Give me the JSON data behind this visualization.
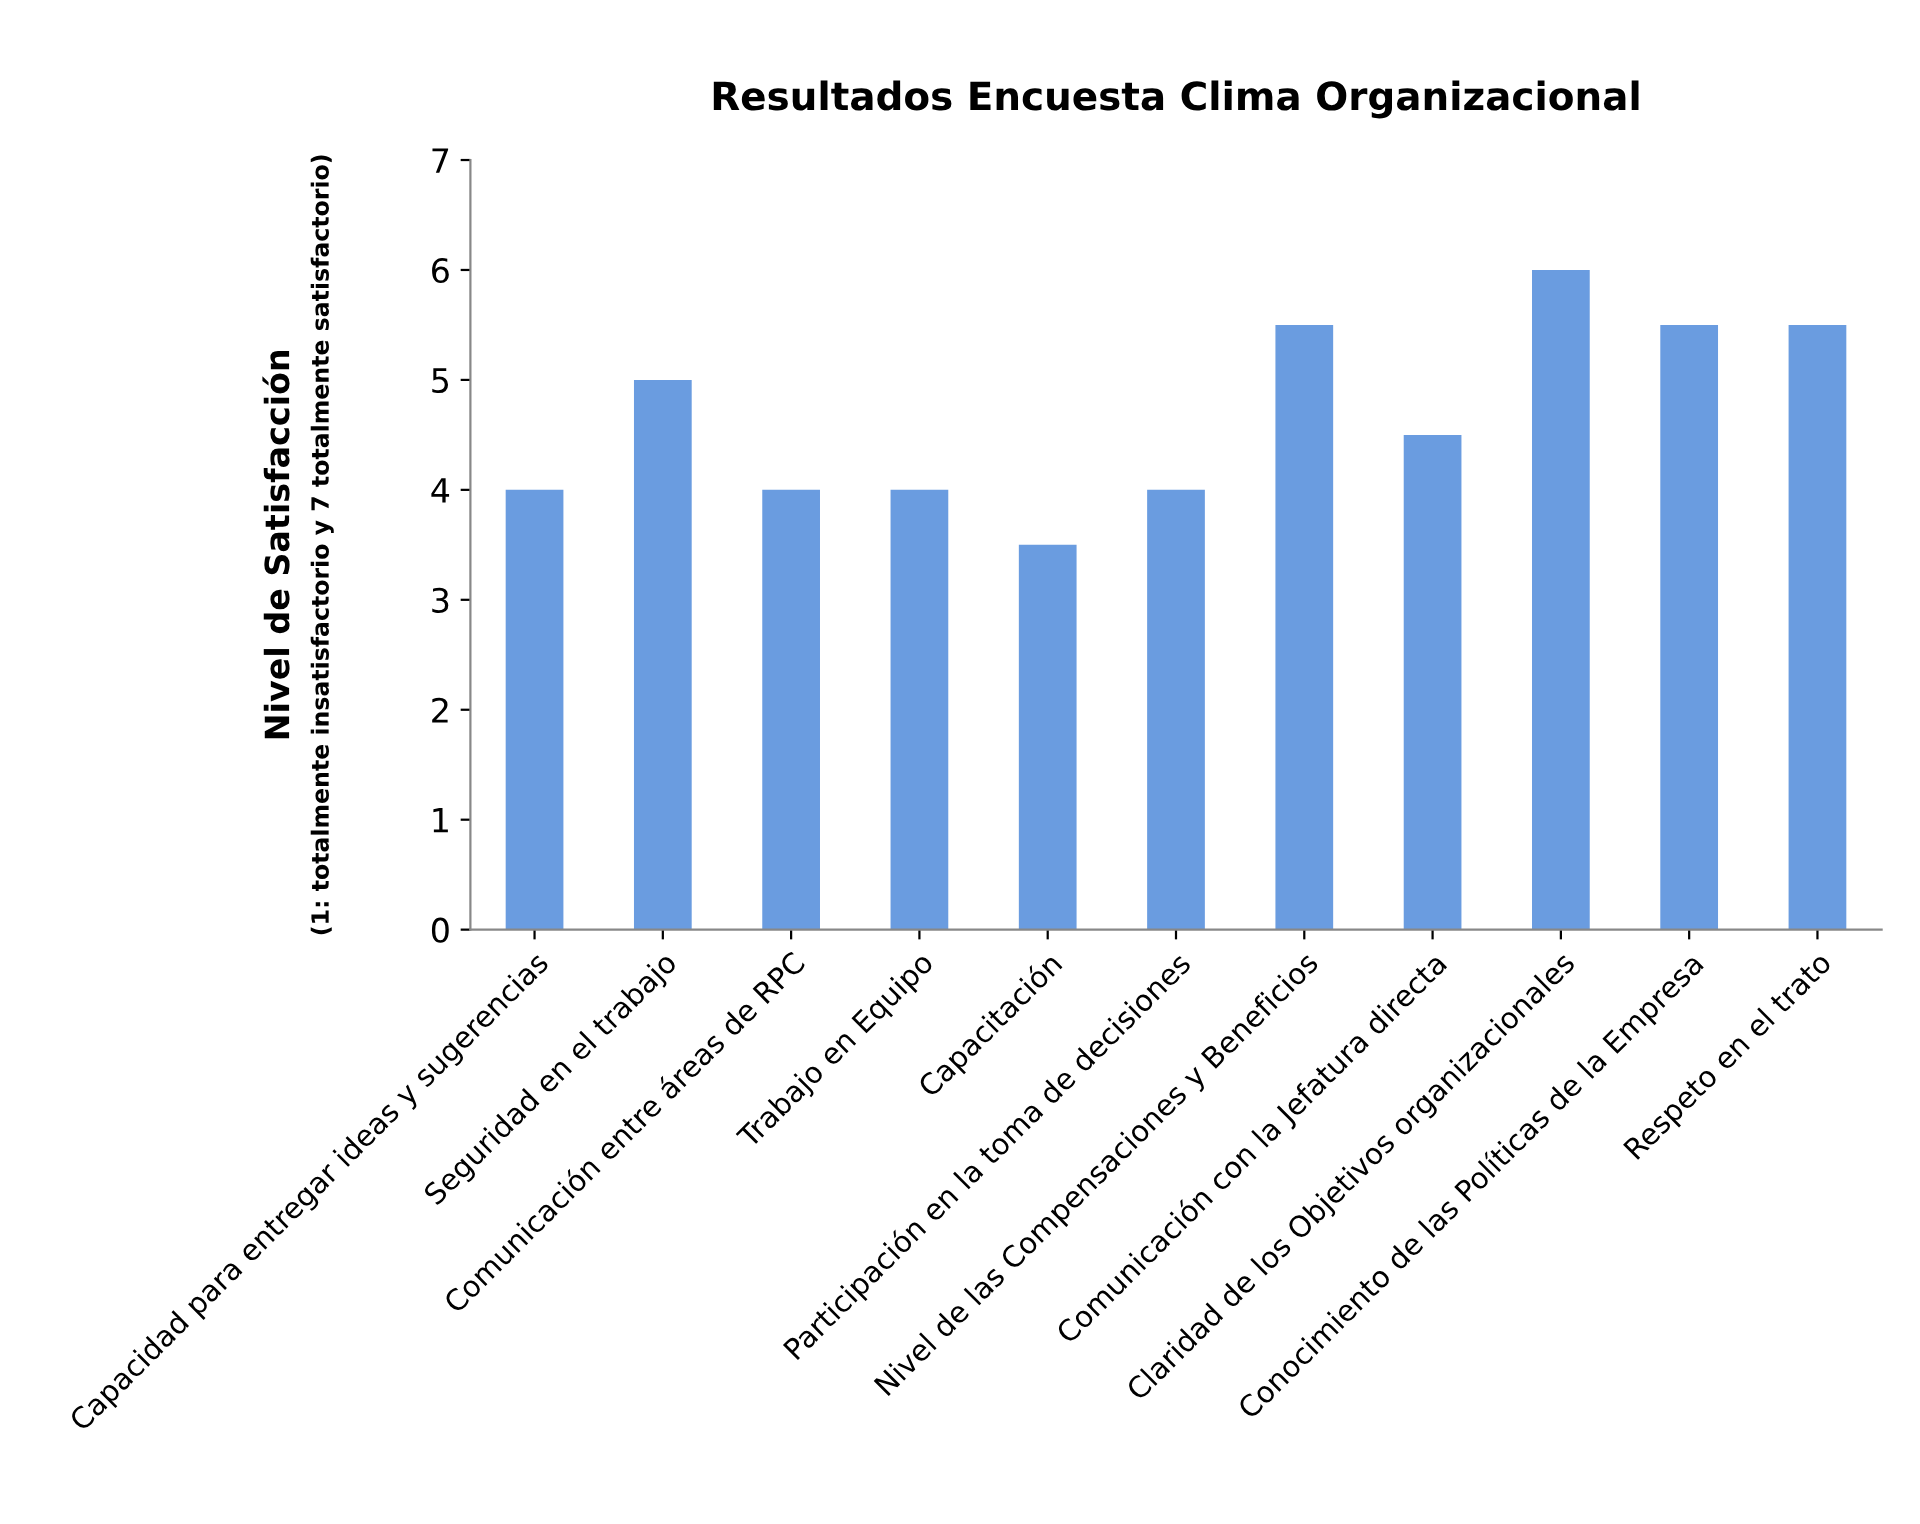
{
  "chart_data": {
    "type": "bar",
    "title": "Resultados Encuesta Clima Organizacional",
    "ylabel": "Nivel de Satisfacción\n(1: totalmente insatisfactorio y 7 totalmente satisfactorio)",
    "categories": [
      "Capacidad para entregar ideas y sugerencias",
      "Seguridad en el trabajo",
      "Comunicación entre áreas de RPC",
      "Trabajo en Equipo",
      "Capacitación",
      "Participación en la toma de decisiones",
      "Nivel de las Compensaciones y Beneficios",
      "Comunicación con la Jefatura directa",
      "Claridad de los Objetivos organizacionales",
      "Conocimiento de las Políticas de la Empresa",
      "Respeto en el trato"
    ],
    "values": [
      4,
      5,
      4,
      4,
      3.5,
      4,
      5.5,
      4.5,
      6,
      5.5,
      5.5
    ],
    "color": "#6a9ce0",
    "ylim": [
      0,
      7
    ],
    "yticks": [
      0,
      1,
      2,
      3,
      4,
      5,
      6,
      7
    ],
    "grid": false,
    "legend": false
  }
}
